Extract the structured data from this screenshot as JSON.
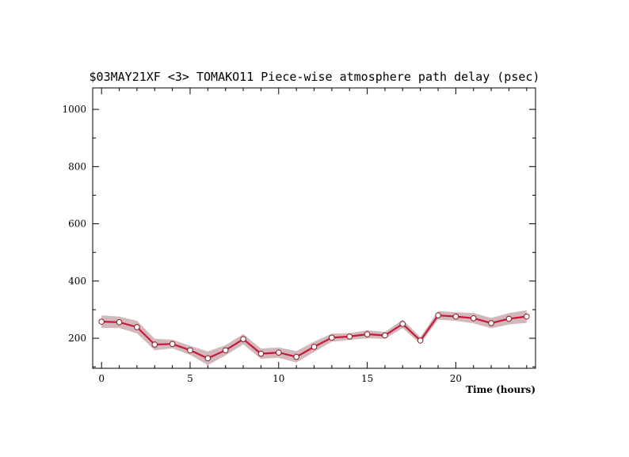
{
  "chart_data": {
    "type": "line",
    "title": "$03MAY21XF <3>  TOMAKO11  Piece-wise atmosphere path delay (psec)",
    "xlabel": "Time (hours)",
    "ylabel": "",
    "xlim": [
      -0.5,
      24.5
    ],
    "ylim": [
      95,
      1075
    ],
    "x_ticks": [
      0,
      5,
      10,
      15,
      20
    ],
    "y_ticks": [
      200,
      400,
      600,
      800,
      1000
    ],
    "grid": false,
    "series": [
      {
        "x": [
          0,
          1,
          2,
          3,
          4,
          5,
          6,
          7,
          8,
          9,
          10,
          11,
          12,
          13,
          14,
          15,
          16,
          17,
          18,
          19,
          20,
          21,
          22,
          23,
          24
        ],
        "values": [
          258,
          256,
          239,
          178,
          180,
          158,
          130,
          158,
          197,
          146,
          150,
          135,
          170,
          202,
          206,
          214,
          210,
          250,
          192,
          280,
          276,
          270,
          253,
          268,
          276
        ],
        "error": [
          22,
          20,
          22,
          20,
          15,
          16,
          24,
          18,
          18,
          18,
          18,
          20,
          18,
          14,
          12,
          14,
          12,
          15,
          12,
          15,
          15,
          18,
          18,
          20,
          22
        ]
      }
    ],
    "colors": {
      "line": "#c8193a",
      "band": "#d2b7bb",
      "marker_fill": "#ffffff",
      "marker_edge": "#8a1a2a"
    }
  }
}
